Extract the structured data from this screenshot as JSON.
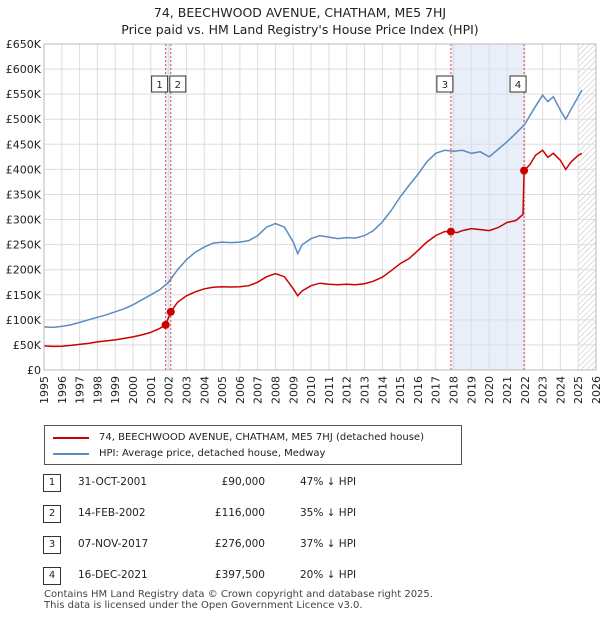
{
  "title_line1": "74, BEECHWOOD AVENUE, CHATHAM, ME5 7HJ",
  "title_line2": "Price paid vs. HM Land Registry's House Price Index (HPI)",
  "colors": {
    "property": "#cc0000",
    "hpi": "#5b8cc0",
    "shade": "#e8eefa",
    "grid": "#dddddd"
  },
  "legend": {
    "property_label": "74, BEECHWOOD AVENUE, CHATHAM, ME5 7HJ (detached house)",
    "hpi_label": "HPI: Average price, detached house, Medway"
  },
  "sales": [
    {
      "num": "1",
      "date": "31-OCT-2001",
      "price": "£90,000",
      "hpi": "47% ↓ HPI"
    },
    {
      "num": "2",
      "date": "14-FEB-2002",
      "price": "£116,000",
      "hpi": "35% ↓ HPI"
    },
    {
      "num": "3",
      "date": "07-NOV-2017",
      "price": "£276,000",
      "hpi": "37% ↓ HPI"
    },
    {
      "num": "4",
      "date": "16-DEC-2021",
      "price": "£397,500",
      "hpi": "20% ↓ HPI"
    }
  ],
  "footer": {
    "line1": "Contains HM Land Registry data © Crown copyright and database right 2025.",
    "line2": "This data is licensed under the Open Government Licence v3.0."
  },
  "chart_data": {
    "type": "line",
    "title": "74, BEECHWOOD AVENUE, CHATHAM, ME5 7HJ",
    "subtitle": "Price paid vs. HM Land Registry's House Price Index (HPI)",
    "xlim": [
      1995,
      2026
    ],
    "ylim": [
      0,
      650000
    ],
    "x_ticks": [
      1995,
      1996,
      1997,
      1998,
      1999,
      2000,
      2001,
      2002,
      2003,
      2004,
      2005,
      2006,
      2007,
      2008,
      2009,
      2010,
      2011,
      2012,
      2013,
      2014,
      2015,
      2016,
      2017,
      2018,
      2019,
      2020,
      2021,
      2022,
      2023,
      2024,
      2025,
      2026
    ],
    "y_ticks": [
      0,
      50000,
      100000,
      150000,
      200000,
      250000,
      300000,
      350000,
      400000,
      450000,
      500000,
      550000,
      600000,
      650000
    ],
    "y_tick_labels": [
      "£0",
      "£50K",
      "£100K",
      "£150K",
      "£200K",
      "£250K",
      "£300K",
      "£350K",
      "£400K",
      "£450K",
      "£500K",
      "£550K",
      "£600K",
      "£650K"
    ],
    "shaded_ranges": [
      [
        2001.83,
        2002.12
      ],
      [
        2017.85,
        2021.96
      ]
    ],
    "future_hatch_from": 2025.0,
    "marker_lines": [
      {
        "label": "1",
        "x": 2001.83
      },
      {
        "label": "2",
        "x": 2002.12
      },
      {
        "label": "3",
        "x": 2017.85
      },
      {
        "label": "4",
        "x": 2021.96
      }
    ],
    "sale_points": [
      {
        "x": 2001.83,
        "y": 90000
      },
      {
        "x": 2002.12,
        "y": 116000
      },
      {
        "x": 2017.85,
        "y": 276000
      },
      {
        "x": 2021.96,
        "y": 397500
      }
    ],
    "series": [
      {
        "name": "74, BEECHWOOD AVENUE, CHATHAM, ME5 7HJ (detached house)",
        "color": "#cc0000",
        "x": [
          1995,
          1995.5,
          1996,
          1996.5,
          1997,
          1997.5,
          1998,
          1998.5,
          1999,
          1999.5,
          2000,
          2000.5,
          2001,
          2001.5,
          2001.83,
          2002.12,
          2002.5,
          2003,
          2003.5,
          2004,
          2004.5,
          2005,
          2005.5,
          2006,
          2006.5,
          2007,
          2007.5,
          2008,
          2008.5,
          2009,
          2009.25,
          2009.5,
          2010,
          2010.5,
          2011,
          2011.5,
          2012,
          2012.5,
          2013,
          2013.5,
          2014,
          2014.5,
          2015,
          2015.5,
          2016,
          2016.5,
          2017,
          2017.5,
          2017.85,
          2018.2,
          2018.5,
          2019,
          2019.5,
          2020,
          2020.5,
          2021,
          2021.5,
          2021.9,
          2021.96,
          2022.3,
          2022.6,
          2023,
          2023.3,
          2023.6,
          2024,
          2024.3,
          2024.6,
          2025,
          2025.2
        ],
        "y": [
          48000,
          47000,
          47500,
          49000,
          51000,
          53000,
          56000,
          58000,
          60000,
          63000,
          66000,
          70000,
          75000,
          83000,
          90000,
          116000,
          135000,
          148000,
          156000,
          162000,
          165000,
          166000,
          165500,
          166000,
          168000,
          175000,
          186000,
          192000,
          186000,
          162000,
          148000,
          158000,
          168000,
          173000,
          171000,
          170000,
          171000,
          170000,
          172000,
          177000,
          185000,
          198000,
          212000,
          222000,
          238000,
          255000,
          268000,
          276000,
          276000,
          274000,
          278000,
          282000,
          280000,
          278000,
          284000,
          294000,
          298000,
          310000,
          397500,
          410000,
          428000,
          438000,
          424000,
          432000,
          418000,
          400000,
          415000,
          428000,
          432000
        ]
      },
      {
        "name": "HPI: Average price, detached house, Medway",
        "color": "#5b8cc0",
        "x": [
          1995,
          1995.5,
          1996,
          1996.5,
          1997,
          1997.5,
          1998,
          1998.5,
          1999,
          1999.5,
          2000,
          2000.5,
          2001,
          2001.5,
          2002,
          2002.5,
          2003,
          2003.5,
          2004,
          2004.5,
          2005,
          2005.5,
          2006,
          2006.5,
          2007,
          2007.5,
          2008,
          2008.5,
          2009,
          2009.25,
          2009.5,
          2010,
          2010.5,
          2011,
          2011.5,
          2012,
          2012.5,
          2013,
          2013.5,
          2014,
          2014.5,
          2015,
          2015.5,
          2016,
          2016.5,
          2017,
          2017.5,
          2018,
          2018.5,
          2019,
          2019.5,
          2020,
          2020.5,
          2021,
          2021.5,
          2022,
          2022.5,
          2023,
          2023.3,
          2023.6,
          2024,
          2024.3,
          2024.6,
          2025,
          2025.2
        ],
        "y": [
          86000,
          85000,
          87000,
          90000,
          95000,
          100000,
          105000,
          110000,
          116000,
          122000,
          130000,
          140000,
          150000,
          160000,
          175000,
          200000,
          220000,
          235000,
          245000,
          253000,
          255000,
          254000,
          255000,
          258000,
          268000,
          285000,
          292000,
          285000,
          255000,
          232000,
          250000,
          262000,
          268000,
          265000,
          262000,
          264000,
          263000,
          268000,
          278000,
          295000,
          318000,
          345000,
          368000,
          390000,
          415000,
          432000,
          438000,
          436000,
          438000,
          432000,
          435000,
          425000,
          440000,
          455000,
          472000,
          490000,
          520000,
          548000,
          535000,
          545000,
          518000,
          500000,
          520000,
          545000,
          558000
        ]
      }
    ]
  }
}
